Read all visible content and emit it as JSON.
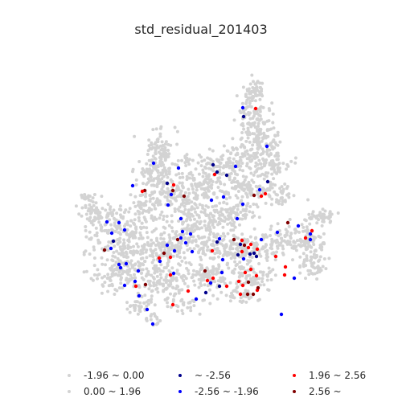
{
  "title": "std_residual_201403",
  "colors": {
    "neutral": "#d3d3d3",
    "low_extreme": "#00008b",
    "low": "#0000ff",
    "high": "#ff0000",
    "high_extreme": "#800000"
  },
  "legend": {
    "items": [
      {
        "label": "-1.96 ~ 0.00",
        "color_key": "neutral"
      },
      {
        "label": "0.00 ~ 1.96",
        "color_key": "neutral"
      },
      {
        "label": "~ -2.56",
        "color_key": "low_extreme"
      },
      {
        "label": "-2.56 ~ -1.96",
        "color_key": "low"
      },
      {
        "label": "1.96 ~ 2.56",
        "color_key": "high"
      },
      {
        "label": "2.56 ~",
        "color_key": "high_extreme"
      }
    ]
  }
}
